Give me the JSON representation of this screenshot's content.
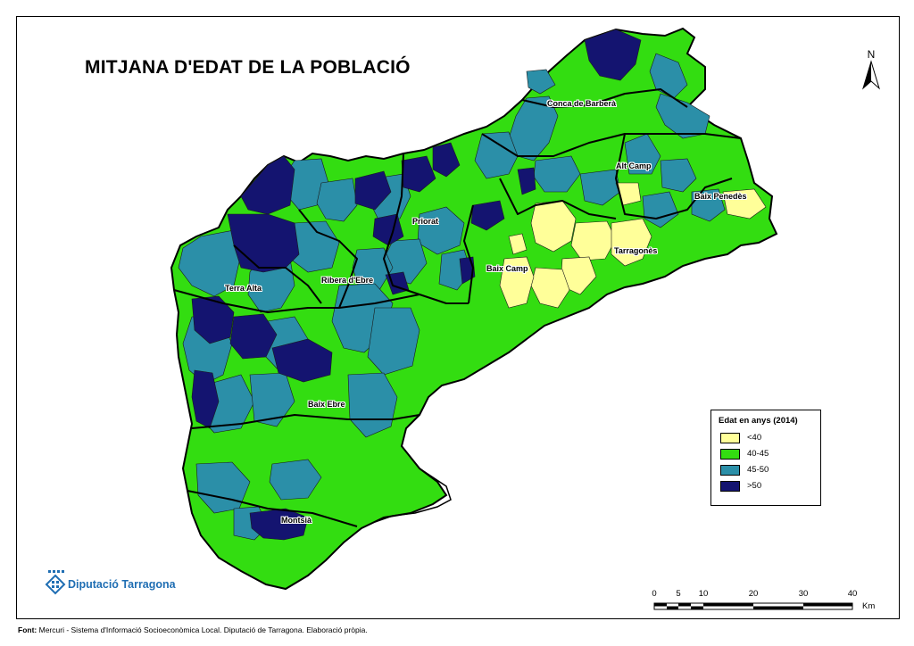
{
  "title": "MITJANA D'EDAT DE LA POBLACIÓ",
  "north_arrow": {
    "letter": "N",
    "icon": "north-arrow-icon"
  },
  "legend": {
    "title": "Edat en anys (2014)",
    "items": [
      {
        "label": "<40",
        "color": "#ffff99"
      },
      {
        "label": "40-45",
        "color": "#33dd11"
      },
      {
        "label": "45-50",
        "color": "#2b8fa8"
      },
      {
        "label": ">50",
        "color": "#141470"
      }
    ]
  },
  "region_labels": {
    "conca_de_barbera": "Conca de Barberà",
    "alt_camp": "Alt Camp",
    "baix_penedes": "Baix Penedès",
    "priorat": "Priorat",
    "tarragones": "Tarragonès",
    "baix_camp": "Baix Camp",
    "ribera_debre": "Ribera d'Ebre",
    "terra_alta": "Terra Alta",
    "baix_ebre": "Baix Ebre",
    "montsia": "Montsià"
  },
  "logo": {
    "text": "Diputació Tarragona",
    "icon": "diputacio-logo-icon"
  },
  "scale_bar": {
    "ticks": [
      "0",
      "5",
      "10",
      "20",
      "30",
      "40"
    ],
    "unit": "Km"
  },
  "footer": {
    "label": "Font:",
    "text": "Mercuri - Sistema d'Informació Socioeconòmica Local. Diputació de Tarragona. Elaboració pròpia."
  },
  "colors": {
    "under_40": "#ffff99",
    "40_45": "#33dd11",
    "45_50": "#2b8fa8",
    "over_50": "#141470",
    "sea": "#ffffff",
    "comarca_border": "#000000"
  }
}
